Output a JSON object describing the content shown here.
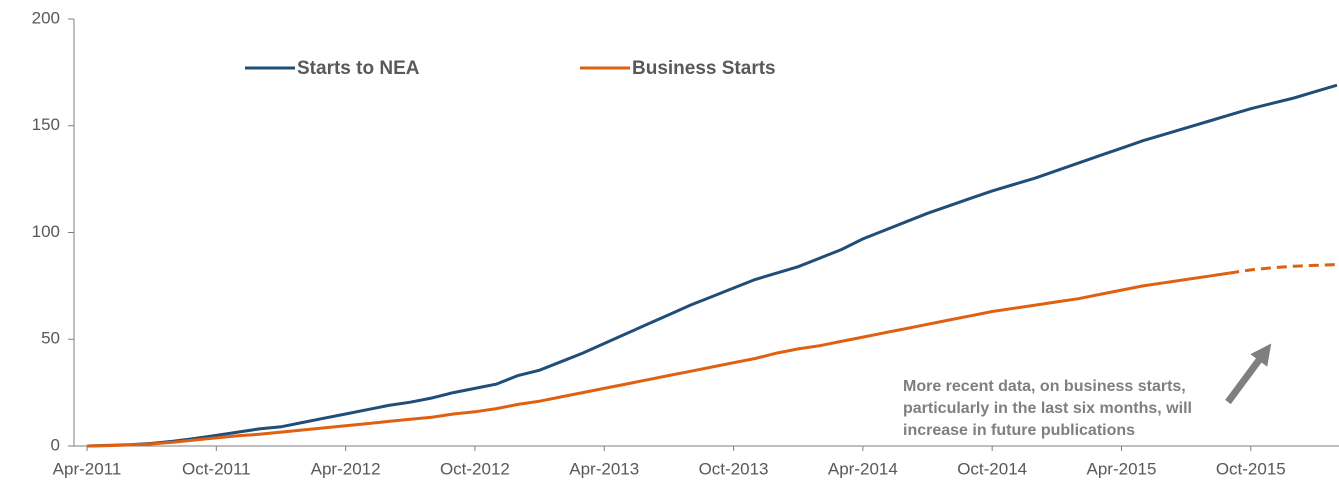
{
  "chart_data": {
    "type": "line",
    "categories": [
      "Apr-2011",
      null,
      null,
      null,
      null,
      null,
      "Oct-2011",
      null,
      null,
      null,
      null,
      null,
      "Apr-2012",
      null,
      null,
      null,
      null,
      null,
      "Oct-2012",
      null,
      null,
      null,
      null,
      null,
      "Apr-2013",
      null,
      null,
      null,
      null,
      null,
      "Oct-2013",
      null,
      null,
      null,
      null,
      null,
      "Apr-2014",
      null,
      null,
      null,
      null,
      null,
      "Oct-2014",
      null,
      null,
      null,
      null,
      null,
      "Apr-2015",
      null,
      null,
      null,
      null,
      null,
      "Oct-2015",
      null,
      null,
      null,
      null
    ],
    "series": [
      {
        "name": "Starts to NEA",
        "color": "#1f4e79",
        "values": [
          0,
          0.3,
          0.6,
          1.2,
          2.2,
          3.5,
          5,
          6.5,
          8,
          9,
          11,
          13,
          15,
          17,
          19,
          20.5,
          22.5,
          25,
          27,
          29,
          33,
          35.5,
          39.5,
          43.5,
          48,
          52.5,
          57,
          61.5,
          66,
          70,
          74,
          78,
          81,
          84,
          88,
          92,
          97,
          101,
          105,
          109,
          112.5,
          116,
          119.5,
          122.5,
          125.5,
          129,
          132.5,
          136,
          139.5,
          143,
          146,
          149,
          152,
          155,
          158,
          160.5,
          163,
          166,
          169
        ]
      },
      {
        "name": "Business Starts",
        "color": "#e06012",
        "dashed_from": 53,
        "values": [
          0,
          0.2,
          0.5,
          1,
          1.8,
          2.8,
          3.8,
          4.8,
          5.5,
          6.5,
          7.5,
          8.5,
          9.5,
          10.5,
          11.5,
          12.5,
          13.5,
          15,
          16,
          17.5,
          19.5,
          21,
          23,
          25,
          27,
          29,
          31,
          33,
          35,
          37,
          39,
          41,
          43.5,
          45.5,
          47,
          49,
          51,
          53,
          55,
          57,
          59,
          61,
          63,
          64.5,
          66,
          67.5,
          69,
          71,
          73,
          75,
          76.5,
          78,
          79.5,
          81,
          82.5,
          83.5,
          84.2,
          84.6,
          85
        ]
      }
    ],
    "ylim": [
      0,
      200
    ],
    "yticks": [
      0,
      50,
      100,
      150,
      200
    ],
    "grid": false,
    "annotation": [
      "More recent data, on business starts,",
      "particularly in the last six months, will",
      "increase  in future publications"
    ]
  }
}
